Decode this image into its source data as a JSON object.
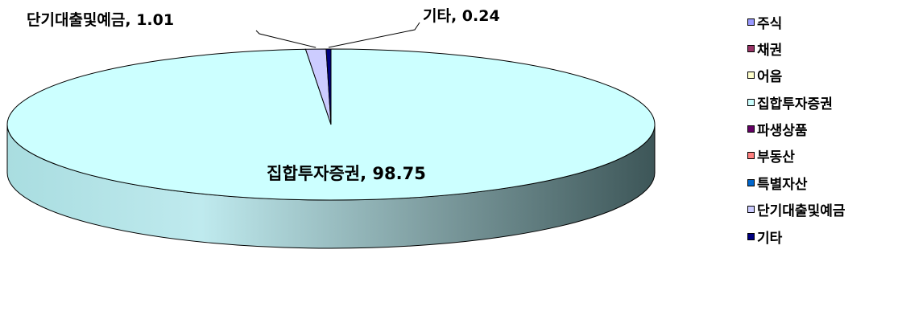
{
  "chart_data": {
    "type": "pie",
    "title": "",
    "categories": [
      "주식",
      "채권",
      "어음",
      "집합투자증권",
      "파생상품",
      "부동산",
      "특별자산",
      "단기대출및예금",
      "기타"
    ],
    "values": [
      0,
      0,
      0,
      98.75,
      0,
      0,
      0,
      1.01,
      0.24
    ],
    "colors": [
      "#9999FF",
      "#993366",
      "#FFFFCC",
      "#CCFFFF",
      "#660066",
      "#FF8080",
      "#0066CC",
      "#CCCCFF",
      "#000080"
    ],
    "data_labels": [
      {
        "category": "집합투자증권",
        "text": "집합투자증권, 98.75"
      },
      {
        "category": "단기대출및예금",
        "text": "단기대출및예금, 1.01"
      },
      {
        "category": "기타",
        "text": "기타, 0.24"
      }
    ],
    "legend_position": "right",
    "style": "3d"
  }
}
